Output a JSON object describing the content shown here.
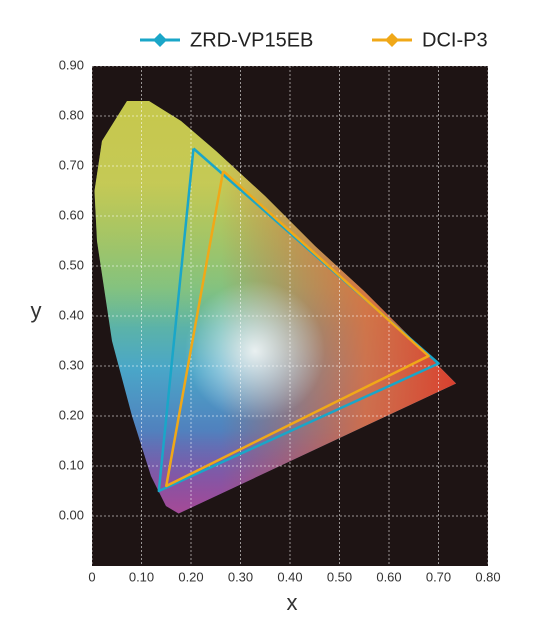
{
  "chart_data": {
    "type": "line",
    "x_label": "x",
    "y_label": "y",
    "series": [
      {
        "name": "ZRD-VP15EB",
        "color": "#1aa6c8",
        "x": [
          0.205,
          0.7,
          0.135,
          0.205
        ],
        "values": [
          0.735,
          0.305,
          0.05,
          0.735
        ]
      },
      {
        "name": "DCI-P3",
        "color": "#f0a818",
        "x": [
          0.265,
          0.68,
          0.15,
          0.265
        ],
        "values": [
          0.69,
          0.32,
          0.06,
          0.69
        ]
      }
    ],
    "xlim": [
      0,
      0.8
    ],
    "xticks": [
      0,
      {
        "value": 0.1,
        "label": "0.10"
      },
      {
        "value": 0.2,
        "label": "0.20"
      },
      {
        "value": 0.3,
        "label": "0.30"
      },
      {
        "value": 0.4,
        "label": "0.40"
      },
      {
        "value": 0.5,
        "label": "0.50"
      },
      {
        "value": 0.6,
        "label": "0.60"
      },
      {
        "value": 0.7,
        "label": "0.70"
      },
      {
        "value": 0.8,
        "label": "0.80"
      }
    ],
    "ylim": [
      -0.1,
      0.9
    ],
    "yticks": [
      {
        "value": 0,
        "label": "0.00"
      },
      {
        "value": 0.1,
        "label": "0.10"
      },
      {
        "value": 0.2,
        "label": "0.20"
      },
      {
        "value": 0.3,
        "label": "0.30"
      },
      {
        "value": 0.4,
        "label": "0.40"
      },
      {
        "value": 0.5,
        "label": "0.50"
      },
      {
        "value": 0.6,
        "label": "0.60"
      },
      {
        "value": 0.7,
        "label": "0.70"
      },
      {
        "value": 0.8,
        "label": "0.80"
      },
      {
        "value": 0.9,
        "label": "0.90"
      }
    ],
    "grid": true
  }
}
